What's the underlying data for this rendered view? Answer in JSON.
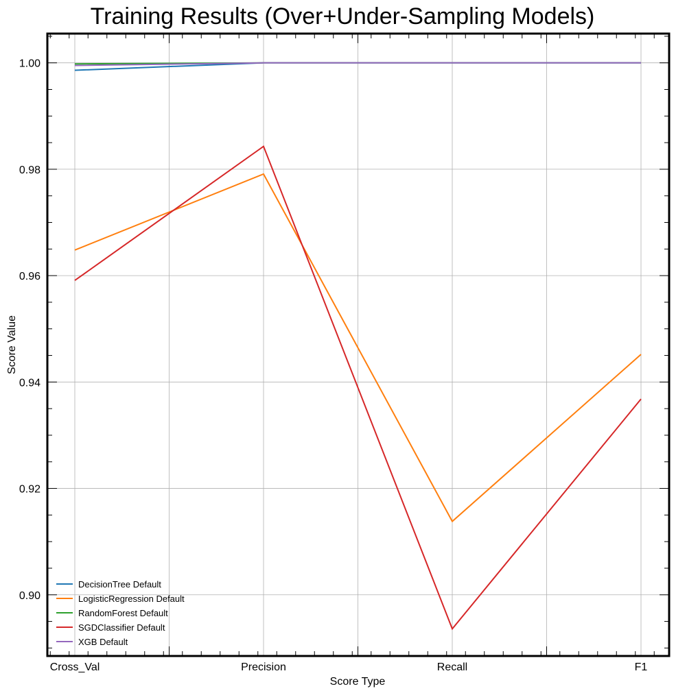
{
  "chart_data": {
    "type": "line",
    "title": "Training Results (Over+Under-Sampling Models)",
    "xlabel": "Score Type",
    "ylabel": "Score Value",
    "categories": [
      "Cross_Val",
      "Precision",
      "Recall",
      "F1"
    ],
    "ylim": [
      0.8885,
      1.0055
    ],
    "yticks": [
      0.9,
      0.92,
      0.94,
      0.96,
      0.98,
      1.0
    ],
    "ytick_labels": [
      "0.90",
      "0.92",
      "0.94",
      "0.96",
      "0.98",
      "1.00"
    ],
    "grid": true,
    "legend_position": "lower-left",
    "series": [
      {
        "name": "DecisionTree Default",
        "color": "#1f77b4",
        "values": [
          0.9986,
          1.0,
          1.0,
          1.0
        ]
      },
      {
        "name": "LogisticRegression Default",
        "color": "#ff7f0e",
        "values": [
          0.9648,
          0.9791,
          0.9138,
          0.9452
        ]
      },
      {
        "name": "RandomForest Default",
        "color": "#2ca02c",
        "values": [
          0.9998,
          1.0,
          1.0,
          1.0
        ]
      },
      {
        "name": "SGDClassifier Default",
        "color": "#d62728",
        "values": [
          0.9591,
          0.9843,
          0.8936,
          0.9368
        ]
      },
      {
        "name": "XGB Default",
        "color": "#9467bd",
        "values": [
          0.9995,
          1.0,
          1.0,
          1.0
        ]
      }
    ]
  }
}
